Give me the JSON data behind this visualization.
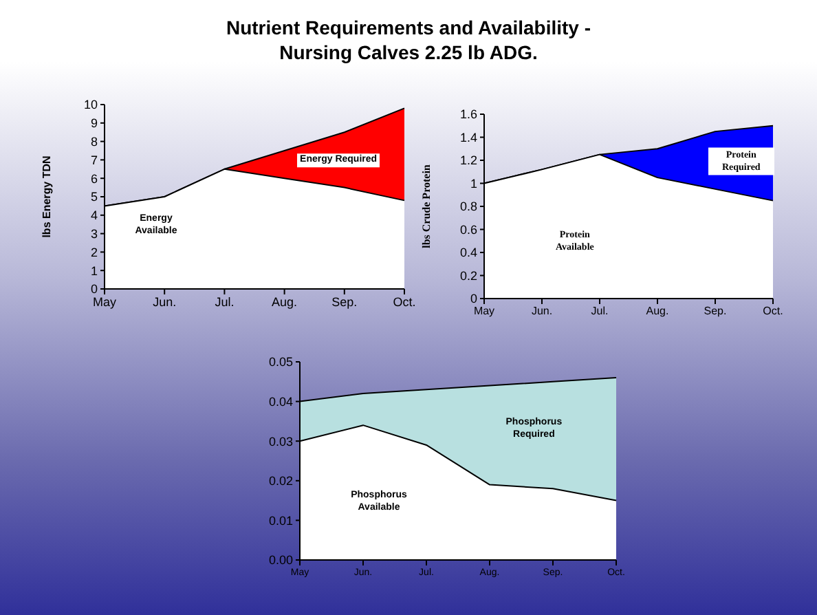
{
  "chart_data": [
    {
      "type": "area",
      "title": "Nutrient Requirements and Availability - Nursing Calves 2.25 lb ADG.",
      "ylabel": "lbs Energy TDN",
      "categories": [
        "May",
        "Jun.",
        "Jul.",
        "Aug.",
        "Sep.",
        "Oct."
      ],
      "ylim": [
        0,
        10
      ],
      "yticks": [
        0,
        1,
        2,
        3,
        4,
        5,
        6,
        7,
        8,
        9,
        10
      ],
      "grid": false,
      "legend": false,
      "marker": "none",
      "series": [
        {
          "name": "Energy Required",
          "color": "#ff0000",
          "values": [
            4.5,
            5,
            6.5,
            7.5,
            8.5,
            9.8
          ]
        },
        {
          "name": "Energy Available",
          "color": "#ffffff",
          "values": [
            4.5,
            5,
            6.5,
            6,
            5.5,
            4.8
          ]
        }
      ]
    },
    {
      "type": "area",
      "ylabel": "lbs Crude Protein",
      "categories": [
        "May",
        "Jun.",
        "Jul.",
        "Aug.",
        "Sep.",
        "Oct."
      ],
      "ylim": [
        0,
        1.6
      ],
      "yticks": [
        0,
        0.2,
        0.4,
        0.6,
        0.8,
        1,
        1.2,
        1.4,
        1.6
      ],
      "grid": false,
      "legend": false,
      "marker": "none",
      "series": [
        {
          "name": "Protein Required",
          "color": "#0000ff",
          "values": [
            1.0,
            1.12,
            1.25,
            1.3,
            1.45,
            1.5
          ]
        },
        {
          "name": "Protein Available",
          "color": "#ffffff",
          "values": [
            1.0,
            1.12,
            1.25,
            1.05,
            0.95,
            0.85
          ]
        }
      ]
    },
    {
      "type": "area",
      "categories": [
        "May",
        "Jun.",
        "Jul.",
        "Aug.",
        "Sep.",
        "Oct."
      ],
      "ylim": [
        0,
        0.05
      ],
      "yticks": [
        {
          "value": 0,
          "label": "0.00"
        },
        {
          "value": 0.01,
          "label": "0.01"
        },
        {
          "value": 0.02,
          "label": "0.02"
        },
        {
          "value": 0.03,
          "label": "0.03"
        },
        {
          "value": 0.04,
          "label": "0.04"
        },
        {
          "value": 0.05,
          "label": "0.05"
        }
      ],
      "grid": false,
      "legend": false,
      "marker": "none",
      "series": [
        {
          "name": "Phosphorus Required",
          "color": "#b8e0e0",
          "values": [
            0.04,
            0.042,
            0.043,
            0.044,
            0.045,
            0.046
          ]
        },
        {
          "name": "Phosphorus Available",
          "color": "#ffffff",
          "values": [
            0.03,
            0.034,
            0.029,
            0.019,
            0.018,
            0.015
          ]
        }
      ]
    }
  ]
}
